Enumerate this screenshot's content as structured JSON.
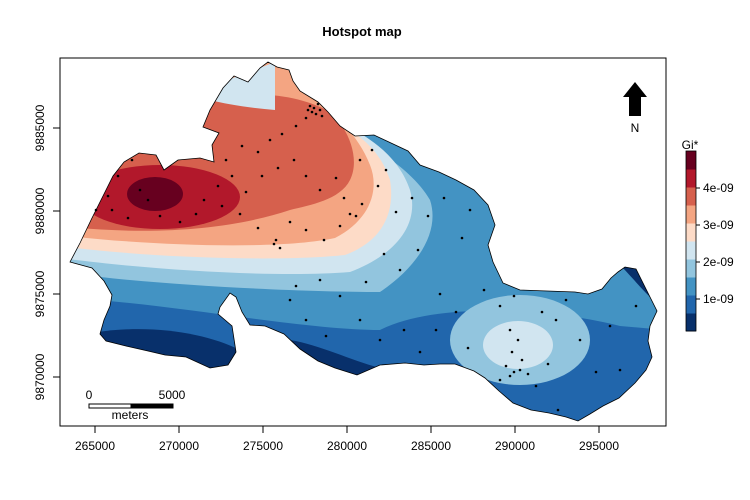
{
  "title": "Hotspot map",
  "x_axis": {
    "ticks": [
      "265000",
      "270000",
      "275000",
      "280000",
      "285000",
      "290000",
      "295000"
    ]
  },
  "y_axis": {
    "ticks": [
      "9870000",
      "9875000",
      "9880000",
      "9885000"
    ]
  },
  "legend": {
    "title": "Gi*",
    "labels": [
      "1e-09",
      "2e-09",
      "3e-09",
      "4e-09"
    ],
    "colors": [
      "#08306b",
      "#2166ac",
      "#4393c3",
      "#92c5de",
      "#d1e5f0",
      "#fddbc7",
      "#f4a582",
      "#d6604d",
      "#b2182b",
      "#67001f"
    ]
  },
  "north_arrow": {
    "label": "N"
  },
  "scale_bar": {
    "start_label": "0",
    "end_label": "5000",
    "unit_label": "meters"
  }
}
